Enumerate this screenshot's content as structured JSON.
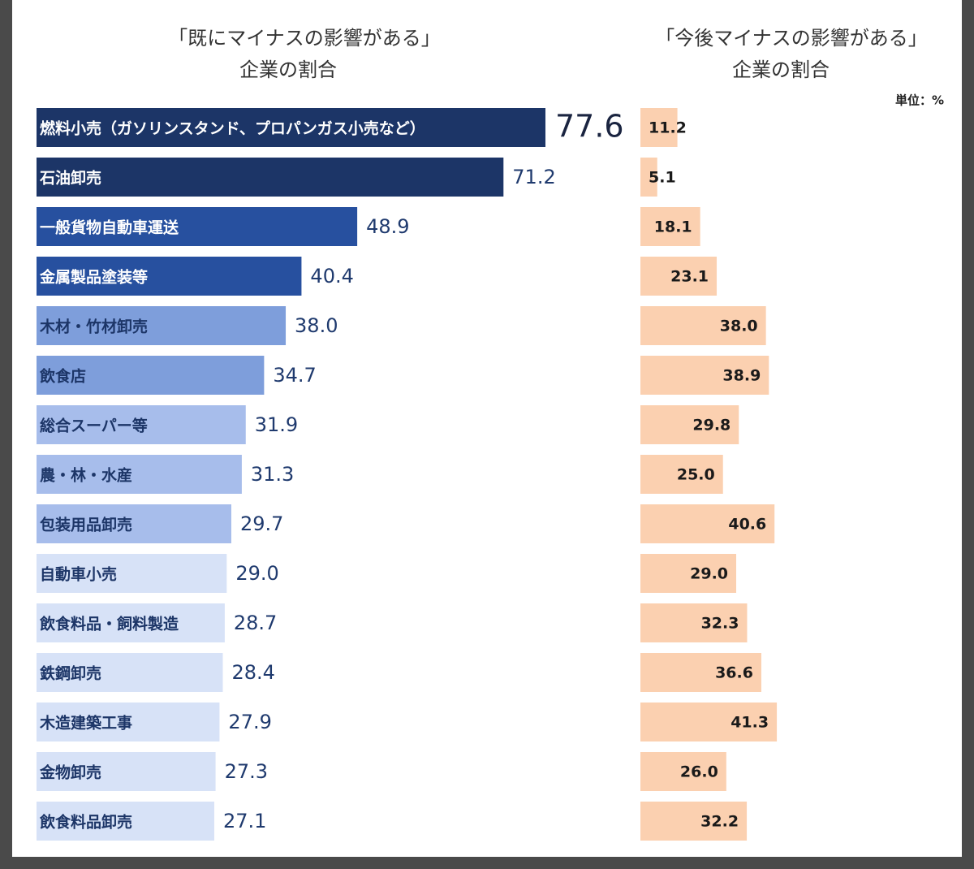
{
  "chart_data": [
    {
      "type": "bar",
      "title": [
        "「既にマイナスの影響がある」",
        "企業の割合"
      ],
      "categories": [
        "燃料小売（ガソリンスタンド、プロパンガス小売など）",
        "石油卸売",
        "一般貨物自動車運送",
        "金属製品塗装等",
        "木材・竹材卸売",
        "飲食店",
        "総合スーパー等",
        "農・林・水産",
        "包装用品卸売",
        "自動車小売",
        "飲食料品・飼料製造",
        "鉄鋼卸売",
        "木造建築工事",
        "金物卸売",
        "飲食料品卸売"
      ],
      "values": [
        77.6,
        71.2,
        48.9,
        40.4,
        38.0,
        34.7,
        31.9,
        31.3,
        29.7,
        29.0,
        28.7,
        28.4,
        27.9,
        27.3,
        27.1
      ],
      "value_labels": [
        "77.6",
        "71.2",
        "48.9",
        "40.4",
        "38.0",
        "34.7",
        "31.9",
        "31.3",
        "29.7",
        "29.0",
        "28.7",
        "28.4",
        "27.9",
        "27.3",
        "27.1"
      ],
      "colors": [
        "#1c3567",
        "#1c3567",
        "#27509f",
        "#27509f",
        "#7e9edb",
        "#7e9edb",
        "#a7bdeb",
        "#a7bdeb",
        "#a7bdeb",
        "#d7e2f7",
        "#d7e2f7",
        "#d7e2f7",
        "#d7e2f7",
        "#d7e2f7",
        "#d7e2f7"
      ]
    },
    {
      "type": "bar",
      "title": [
        "「今後マイナスの影響がある」",
        "企業の割合"
      ],
      "unit_label": "単位：%",
      "values": [
        11.2,
        5.1,
        18.1,
        23.1,
        38.0,
        38.9,
        29.8,
        25.0,
        40.6,
        29.0,
        32.3,
        36.6,
        41.3,
        26.0,
        32.2
      ],
      "value_labels": [
        "11.2",
        "5.1",
        "18.1",
        "23.1",
        "38.0",
        "38.9",
        "29.8",
        "25.0",
        "40.6",
        "29.0",
        "32.3",
        "36.6",
        "41.3",
        "26.0",
        "32.2"
      ],
      "color": "#fbd0b0"
    }
  ]
}
